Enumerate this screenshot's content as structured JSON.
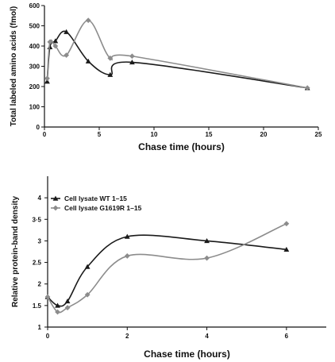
{
  "chart_data": [
    {
      "type": "line",
      "xlabel": "Chase time (hours)",
      "ylabel": "Total labeled amino acids (fmol)",
      "xlim": [
        0,
        25
      ],
      "ylim": [
        0,
        600
      ],
      "xticks": [
        0,
        5,
        10,
        15,
        20,
        25
      ],
      "yticks": [
        0,
        100,
        200,
        300,
        400,
        500,
        600
      ],
      "xtick_labels": [
        "0",
        "5",
        "10",
        "15",
        "20",
        "25"
      ],
      "ytick_labels": [
        "0",
        "100",
        "200",
        "300",
        "400",
        "500",
        "600"
      ],
      "grid": false,
      "legend": "none",
      "series": [
        {
          "color": "#1a1a1a",
          "marker": "triangle",
          "x": [
            0.25,
            0.5,
            1,
            2,
            4,
            6,
            8,
            24
          ],
          "y": [
            225,
            395,
            425,
            470,
            325,
            258,
            320,
            193
          ]
        },
        {
          "color": "#8c8c8c",
          "marker": "diamond",
          "x": [
            0.25,
            0.5,
            1,
            2,
            4,
            6,
            8,
            24
          ],
          "y": [
            240,
            420,
            400,
            355,
            527,
            340,
            350,
            193
          ]
        }
      ]
    },
    {
      "type": "line",
      "xlabel": "Chase time (hours)",
      "ylabel": "Relative protein-band density",
      "xlim": [
        0,
        7
      ],
      "ylim": [
        1,
        4.5
      ],
      "xticks": [
        0,
        2,
        4,
        6
      ],
      "yticks": [
        1,
        1.5,
        2,
        2.5,
        3,
        3.5,
        4
      ],
      "xtick_labels": [
        "0",
        "2",
        "4",
        "6"
      ],
      "ytick_labels": [
        "1",
        "1.5",
        "2",
        "2.5",
        "3",
        "3·5",
        "4"
      ],
      "grid": false,
      "legend": "top-left",
      "series": [
        {
          "name": "Cell lysate WT 1–15",
          "color": "#1a1a1a",
          "marker": "triangle",
          "x": [
            0,
            0.25,
            0.5,
            1,
            2,
            4,
            6
          ],
          "y": [
            1.7,
            1.5,
            1.6,
            2.4,
            3.1,
            3.0,
            2.8
          ]
        },
        {
          "name": "Cell lysate G1619R 1–15",
          "color": "#8c8c8c",
          "marker": "diamond",
          "x": [
            0,
            0.25,
            0.5,
            1,
            2,
            4,
            6
          ],
          "y": [
            1.7,
            1.35,
            1.45,
            1.75,
            2.65,
            2.6,
            3.4
          ]
        }
      ]
    }
  ]
}
